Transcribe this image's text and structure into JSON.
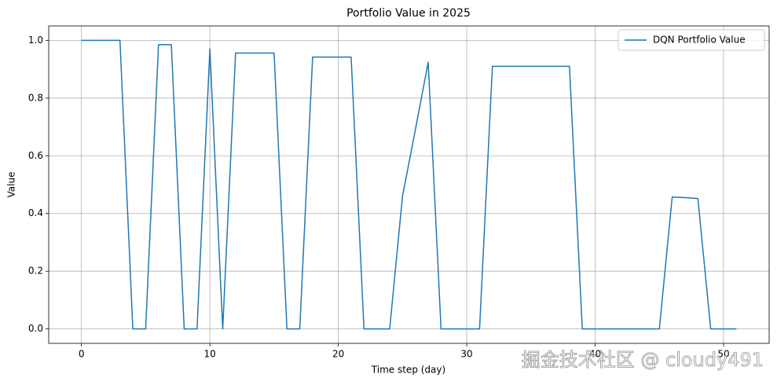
{
  "chart_data": {
    "type": "line",
    "title": "Portfolio Value in 2025",
    "x_label": "Time step (day)",
    "y_label": "Value",
    "x": [
      0,
      1,
      2,
      3,
      4,
      5,
      6,
      7,
      8,
      9,
      10,
      11,
      12,
      13,
      14,
      15,
      16,
      17,
      18,
      19,
      20,
      21,
      22,
      23,
      24,
      25,
      26,
      27,
      28,
      29,
      30,
      31,
      32,
      33,
      34,
      35,
      36,
      37,
      38,
      39,
      40,
      41,
      42,
      43,
      44,
      45,
      46,
      47,
      48,
      49,
      50,
      51
    ],
    "series": [
      {
        "name": "DQN Portfolio Value",
        "color": "#1f77b4",
        "values": [
          1.0,
          1.0,
          1.0,
          1.0,
          0,
          0,
          0.985,
          0.985,
          0,
          0,
          0.97,
          0,
          0.956,
          0.956,
          0.956,
          0.956,
          0,
          0,
          0.942,
          0.942,
          0.942,
          0.942,
          0,
          0,
          0,
          0.46,
          0.69,
          0.924,
          0,
          0,
          0,
          0,
          0.91,
          0.91,
          0.91,
          0.91,
          0.91,
          0.91,
          0.91,
          0,
          0,
          0,
          0,
          0,
          0,
          0,
          0.457,
          0.455,
          0.452,
          0,
          0,
          0
        ]
      }
    ],
    "xlim": [
      -2.55,
      53.55
    ],
    "ylim": [
      -0.05,
      1.05
    ],
    "xticks": [
      0,
      10,
      20,
      30,
      40,
      50
    ],
    "yticks": [
      {
        "value": 0,
        "label": "0.0"
      },
      {
        "value": 0.2,
        "label": "0.2"
      },
      {
        "value": 0.4,
        "label": "0.4"
      },
      {
        "value": 0.6,
        "label": "0.6"
      },
      {
        "value": 0.8,
        "label": "0.8"
      },
      {
        "value": 1.0,
        "label": "1.0"
      }
    ],
    "grid": true,
    "legend": "upper right",
    "watermark": "掘金技术社区 @ cloudy491"
  }
}
